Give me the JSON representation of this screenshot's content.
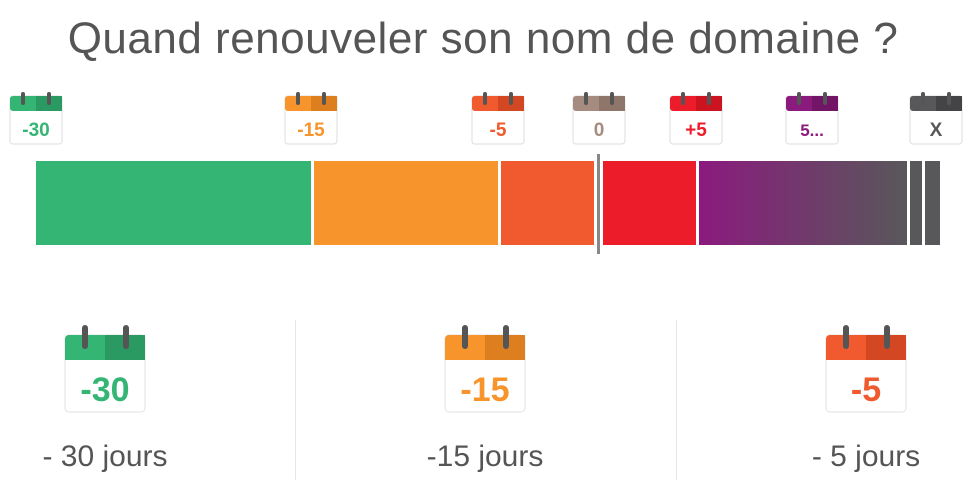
{
  "title": "Quand renouveler son nom de domaine ?",
  "timeline": {
    "markers": [
      {
        "label": "-30",
        "color": "#34b574",
        "dark": "#2a9a62"
      },
      {
        "label": "-15",
        "color": "#f7942c",
        "dark": "#de7f1f"
      },
      {
        "label": "-5",
        "color": "#f05a2e",
        "dark": "#d34822"
      },
      {
        "label": "0",
        "color": "#a58b80",
        "dark": "#8f766b"
      },
      {
        "label": "+5",
        "color": "#ec1c2a",
        "dark": "#cc1320"
      },
      {
        "label": "5...",
        "color": "#8b1a7e",
        "dark": "#731567"
      },
      {
        "label": "X",
        "color": "#58585a",
        "dark": "#444446"
      }
    ],
    "colors": {
      "green": "#34b574",
      "orange": "#f7942c",
      "red_orange": "#f05a2e",
      "red": "#ec1c2a",
      "purple": "#8b1a7e",
      "grey": "#58585a"
    }
  },
  "steps": [
    {
      "label": "-30",
      "caption": "- 30 jours",
      "color": "#34b574",
      "dark": "#2a9a62"
    },
    {
      "label": "-15",
      "caption": "-15 jours",
      "color": "#f7942c",
      "dark": "#de7f1f"
    },
    {
      "label": "-5",
      "caption": "- 5 jours",
      "color": "#f05a2e",
      "dark": "#d34822"
    }
  ]
}
